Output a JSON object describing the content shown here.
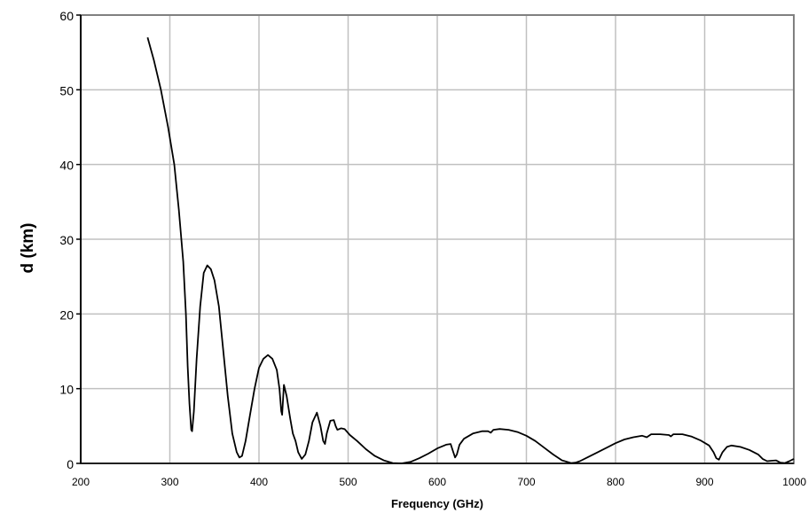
{
  "chart_data": {
    "type": "line",
    "title": "",
    "xlabel": "Frequency (GHz)",
    "ylabel": "d (km)",
    "xlim": [
      200,
      1000
    ],
    "ylim": [
      0,
      60
    ],
    "xticks": [
      200,
      300,
      400,
      500,
      600,
      700,
      800,
      900,
      1000
    ],
    "xtick_labels": [
      "200",
      "300",
      "400",
      "500",
      "600",
      "700",
      "800",
      "900",
      "1000"
    ],
    "yticks": [
      0,
      10,
      20,
      30,
      40,
      50,
      60
    ],
    "ytick_labels": [
      "0",
      "10",
      "20",
      "30",
      "40",
      "50",
      "60"
    ],
    "grid": true,
    "legend": "none",
    "colors": {
      "line": "#000000",
      "grid": "#c0c0c0",
      "frame": "#808080"
    },
    "series": [
      {
        "points": [
          [
            275,
            57
          ],
          [
            282,
            54
          ],
          [
            290,
            50
          ],
          [
            298,
            45
          ],
          [
            305,
            40
          ],
          [
            310,
            34
          ],
          [
            315,
            27
          ],
          [
            318,
            20
          ],
          [
            320,
            13
          ],
          [
            322,
            8
          ],
          [
            324,
            4.5
          ],
          [
            325,
            4.3
          ],
          [
            327,
            7
          ],
          [
            330,
            14
          ],
          [
            334,
            21
          ],
          [
            338,
            25.5
          ],
          [
            342,
            26.5
          ],
          [
            346,
            26
          ],
          [
            350,
            24.5
          ],
          [
            355,
            21
          ],
          [
            360,
            15
          ],
          [
            365,
            9
          ],
          [
            370,
            4
          ],
          [
            375,
            1.5
          ],
          [
            378,
            0.8
          ],
          [
            381,
            1
          ],
          [
            385,
            3
          ],
          [
            390,
            6.5
          ],
          [
            395,
            10
          ],
          [
            400,
            12.8
          ],
          [
            405,
            14
          ],
          [
            410,
            14.5
          ],
          [
            415,
            14
          ],
          [
            420,
            12.5
          ],
          [
            423,
            10
          ],
          [
            425,
            7
          ],
          [
            426,
            6.5
          ],
          [
            428,
            10.5
          ],
          [
            431,
            9
          ],
          [
            435,
            6
          ],
          [
            438,
            4
          ],
          [
            441,
            3
          ],
          [
            444,
            1.5
          ],
          [
            448,
            0.6
          ],
          [
            452,
            1.2
          ],
          [
            456,
            3
          ],
          [
            460,
            5.5
          ],
          [
            465,
            6.8
          ],
          [
            469,
            5
          ],
          [
            472,
            3
          ],
          [
            474,
            2.6
          ],
          [
            476,
            4
          ],
          [
            480,
            5.7
          ],
          [
            484,
            5.8
          ],
          [
            486,
            5
          ],
          [
            488,
            4.5
          ],
          [
            492,
            4.7
          ],
          [
            496,
            4.6
          ],
          [
            502,
            3.8
          ],
          [
            510,
            3
          ],
          [
            520,
            1.9
          ],
          [
            530,
            1
          ],
          [
            540,
            0.4
          ],
          [
            550,
            0.05
          ],
          [
            560,
            0
          ],
          [
            570,
            0.2
          ],
          [
            580,
            0.7
          ],
          [
            590,
            1.3
          ],
          [
            600,
            2
          ],
          [
            610,
            2.5
          ],
          [
            615,
            2.6
          ],
          [
            618,
            1.5
          ],
          [
            620,
            0.8
          ],
          [
            622,
            1.2
          ],
          [
            625,
            2.5
          ],
          [
            630,
            3.3
          ],
          [
            640,
            4
          ],
          [
            650,
            4.3
          ],
          [
            657,
            4.3
          ],
          [
            660,
            4.1
          ],
          [
            663,
            4.5
          ],
          [
            670,
            4.6
          ],
          [
            680,
            4.5
          ],
          [
            690,
            4.2
          ],
          [
            700,
            3.7
          ],
          [
            710,
            3
          ],
          [
            720,
            2.1
          ],
          [
            730,
            1.2
          ],
          [
            740,
            0.4
          ],
          [
            750,
            0.05
          ],
          [
            755,
            0.1
          ],
          [
            760,
            0.3
          ],
          [
            770,
            0.9
          ],
          [
            780,
            1.5
          ],
          [
            790,
            2.1
          ],
          [
            800,
            2.7
          ],
          [
            810,
            3.2
          ],
          [
            820,
            3.5
          ],
          [
            830,
            3.7
          ],
          [
            835,
            3.5
          ],
          [
            840,
            3.9
          ],
          [
            850,
            3.9
          ],
          [
            860,
            3.8
          ],
          [
            862,
            3.6
          ],
          [
            865,
            3.9
          ],
          [
            875,
            3.9
          ],
          [
            885,
            3.6
          ],
          [
            895,
            3.1
          ],
          [
            905,
            2.4
          ],
          [
            910,
            1.5
          ],
          [
            913,
            0.7
          ],
          [
            916,
            0.5
          ],
          [
            920,
            1.5
          ],
          [
            925,
            2.2
          ],
          [
            930,
            2.4
          ],
          [
            940,
            2.2
          ],
          [
            950,
            1.8
          ],
          [
            960,
            1.2
          ],
          [
            965,
            0.6
          ],
          [
            970,
            0.3
          ],
          [
            975,
            0.35
          ],
          [
            980,
            0.4
          ],
          [
            985,
            0.1
          ],
          [
            990,
            0.05
          ],
          [
            995,
            0.3
          ],
          [
            1000,
            0.6
          ]
        ]
      }
    ]
  }
}
